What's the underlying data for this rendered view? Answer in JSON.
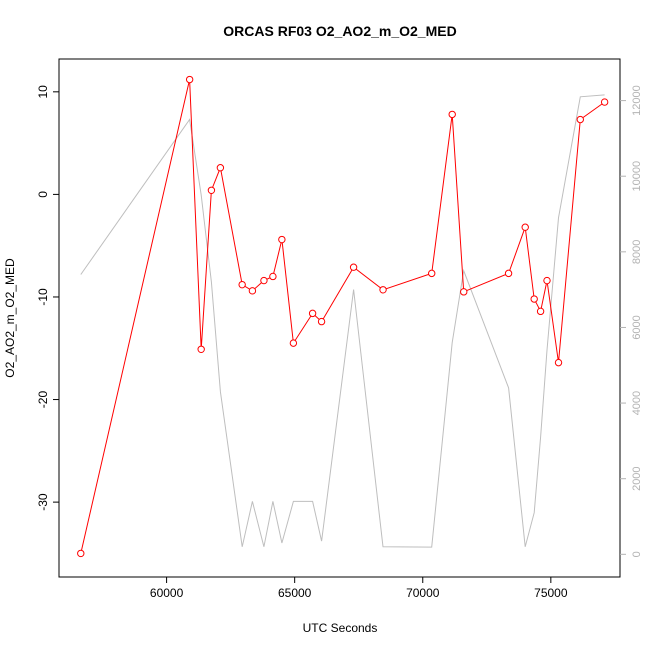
{
  "chart_data": {
    "type": "line",
    "title": "ORCAS RF03 O2_AO2_m_O2_MED",
    "xlabel": "UTC Seconds",
    "ylabel": "O2_AO2_m_O2_MED",
    "xlim": [
      55800,
      77700
    ],
    "ylim": [
      -37.3,
      13.2
    ],
    "y2lim": [
      -600,
      13100
    ],
    "x_ticks": [
      60000,
      65000,
      70000,
      75000
    ],
    "y_ticks": [
      -30,
      -20,
      -10,
      0,
      10
    ],
    "y2_ticks": [
      0,
      2000,
      4000,
      6000,
      8000,
      10000,
      12000
    ],
    "grid": false,
    "series": [
      {
        "axis": "left",
        "color": "#ff0000",
        "marker": "open-circle",
        "points": [
          [
            56650,
            -35.0
          ],
          [
            60900,
            11.2
          ],
          [
            61350,
            -15.1
          ],
          [
            61750,
            0.4
          ],
          [
            62100,
            2.6
          ],
          [
            62950,
            -8.8
          ],
          [
            63350,
            -9.4
          ],
          [
            63800,
            -8.4
          ],
          [
            64150,
            -8.0
          ],
          [
            64500,
            -4.4
          ],
          [
            64950,
            -14.5
          ],
          [
            65700,
            -11.6
          ],
          [
            66050,
            -12.4
          ],
          [
            67300,
            -7.1
          ],
          [
            68450,
            -9.3
          ],
          [
            70350,
            -7.7
          ],
          [
            71150,
            7.8
          ],
          [
            71600,
            -9.5
          ],
          [
            73350,
            -7.7
          ],
          [
            74000,
            -3.2
          ],
          [
            74350,
            -10.2
          ],
          [
            74600,
            -11.4
          ],
          [
            74850,
            -8.4
          ],
          [
            75300,
            -16.4
          ],
          [
            76150,
            7.3
          ],
          [
            77100,
            9.0
          ]
        ]
      },
      {
        "axis": "right",
        "color": "#bebebe",
        "marker": "none",
        "points": [
          [
            56650,
            7400
          ],
          [
            60900,
            11500
          ],
          [
            61350,
            9500
          ],
          [
            61750,
            7200
          ],
          [
            62100,
            4300
          ],
          [
            62950,
            200
          ],
          [
            63350,
            1400
          ],
          [
            63800,
            200
          ],
          [
            64150,
            1400
          ],
          [
            64500,
            300
          ],
          [
            64950,
            1400
          ],
          [
            65700,
            1400
          ],
          [
            66050,
            350
          ],
          [
            67300,
            7000
          ],
          [
            68450,
            200
          ],
          [
            70350,
            190
          ],
          [
            71150,
            5600
          ],
          [
            71600,
            7500
          ],
          [
            73350,
            4400
          ],
          [
            74000,
            200
          ],
          [
            74350,
            1100
          ],
          [
            74600,
            3100
          ],
          [
            74850,
            5400
          ],
          [
            75300,
            8900
          ],
          [
            76150,
            12100
          ],
          [
            77100,
            12150
          ]
        ]
      }
    ]
  }
}
